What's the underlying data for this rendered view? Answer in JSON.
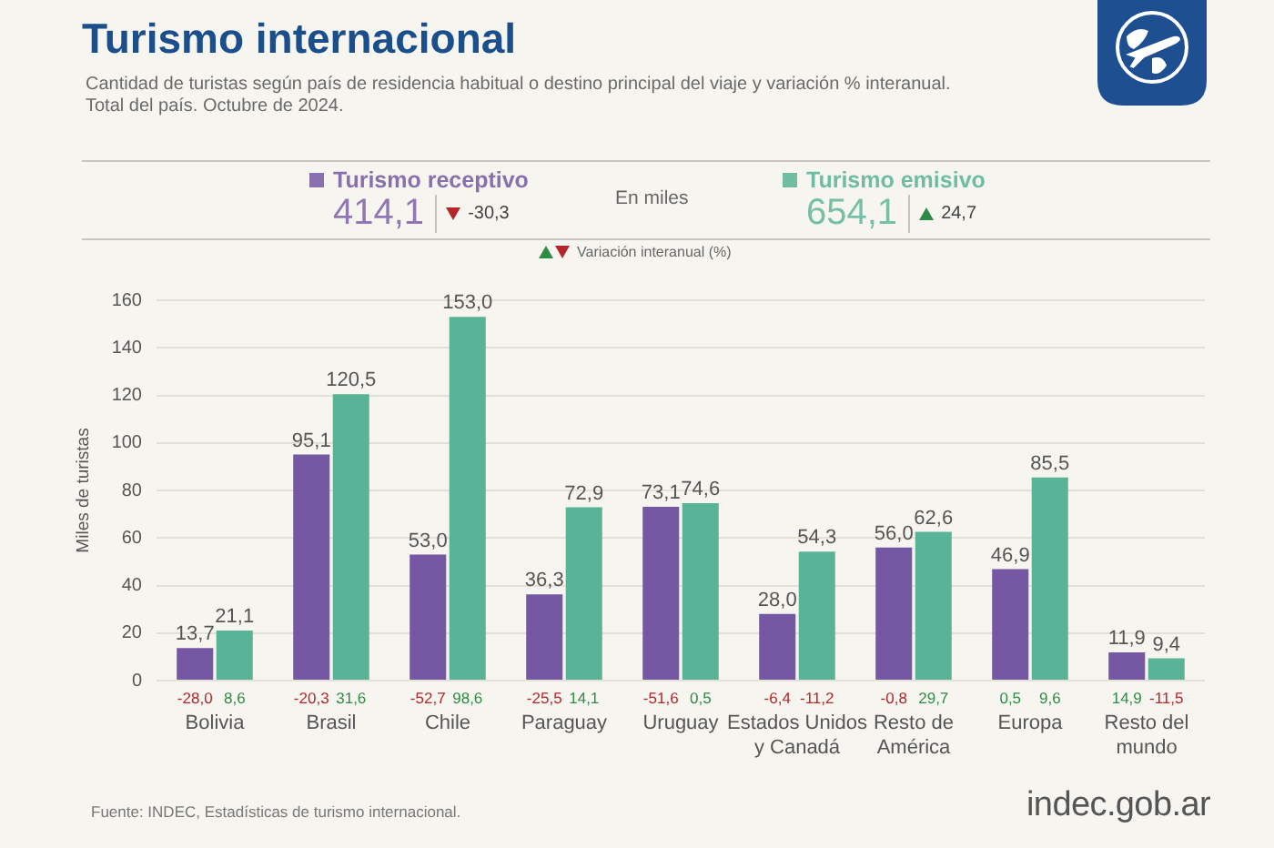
{
  "chart_data": {
    "type": "bar",
    "title": "Turismo internacional",
    "subtitle": "Cantidad de turistas según país de residencia habitual o destino principal del viaje y variación % interanual.\nTotal del país. Octubre de 2024.",
    "ylabel": "Miles de turistas",
    "categories": [
      "Bolivia",
      "Brasil",
      "Chile",
      "Paraguay",
      "Uruguay",
      "Estados Unidos y Canadá",
      "Resto de América",
      "Europa",
      "Resto del mundo"
    ],
    "series": [
      {
        "name": "Turismo receptivo",
        "color": "#7558a3",
        "values": [
          13.7,
          95.1,
          53.0,
          36.3,
          73.1,
          28.0,
          56.0,
          46.9,
          11.9
        ],
        "value_labels": [
          "13,7",
          "95,1",
          "53,0",
          "36,3",
          "73,1",
          "28,0",
          "56,0",
          "46,9",
          "11,9"
        ]
      },
      {
        "name": "Turismo emisivo",
        "color": "#58b397",
        "values": [
          21.1,
          120.5,
          153.0,
          72.9,
          74.6,
          54.3,
          62.6,
          85.5,
          9.4
        ],
        "value_labels": [
          "21,1",
          "120,5",
          "153,0",
          "72,9",
          "74,6",
          "54,3",
          "62,6",
          "85,5",
          "9,4"
        ]
      }
    ],
    "ylim": [
      0,
      160
    ],
    "yticks": [
      0,
      20,
      40,
      60,
      80,
      100,
      120,
      140,
      160
    ],
    "grid": "y",
    "legend": "top",
    "annotations": [
      "414,1",
      "-30,3",
      "654,1",
      "24,7",
      "En miles",
      "Variación interanual (%)",
      "Fuente: INDEC, Estadísticas de turismo internacional.",
      "indec.gob.ar",
      {
        "text": "-28,0",
        "x": "Bolivia",
        "y": 0
      },
      {
        "text": "8,6",
        "x": "Bolivia",
        "y": 0
      },
      {
        "text": "-20,3",
        "x": "Brasil",
        "y": 0
      },
      {
        "text": "31,6",
        "x": "Brasil",
        "y": 0
      },
      {
        "text": "-52,7",
        "x": "Chile",
        "y": 0
      },
      {
        "text": "98,6",
        "x": "Chile",
        "y": 0
      },
      {
        "text": "-25,5",
        "x": "Paraguay",
        "y": 0
      },
      {
        "text": "14,1",
        "x": "Paraguay",
        "y": 0
      },
      {
        "text": "-51,6",
        "x": "Uruguay",
        "y": 0
      },
      {
        "text": "0,5",
        "x": "Uruguay",
        "y": 0
      },
      {
        "text": "-6,4",
        "x": "Estados Unidos y Canadá",
        "y": 0
      },
      {
        "text": "-11,2",
        "x": "Estados Unidos y Canadá",
        "y": 0
      },
      {
        "text": "-0,8",
        "x": "Resto de América",
        "y": 0
      },
      {
        "text": "29,7",
        "x": "Resto de América",
        "y": 0
      },
      {
        "text": "0,5",
        "x": "Europa",
        "y": 0
      },
      {
        "text": "9,6",
        "x": "Europa",
        "y": 0
      },
      {
        "text": "14,9",
        "x": "Resto del mundo",
        "y": 0
      },
      {
        "text": "-11,5",
        "x": "Resto del mundo",
        "y": 0
      }
    ]
  }
}
